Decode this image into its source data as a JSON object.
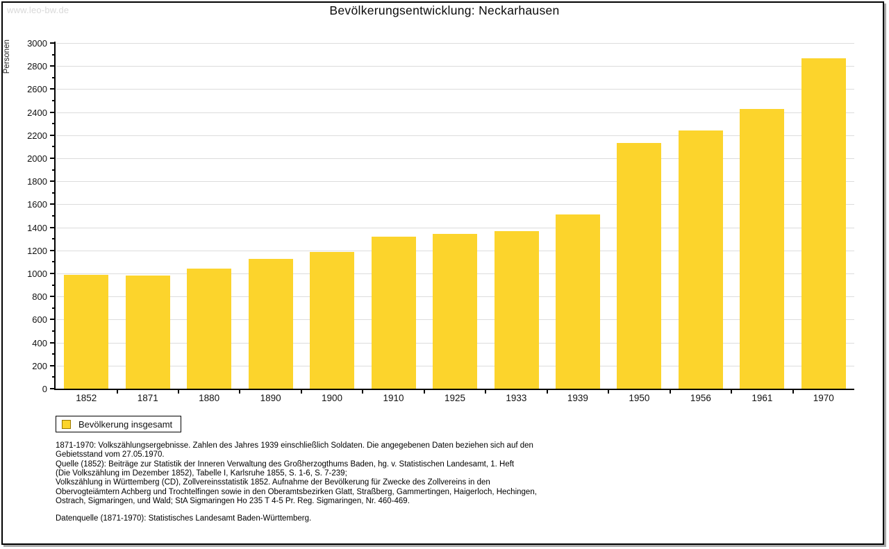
{
  "watermark": "www.leo-bw.de",
  "title": "Bevölkerungsentwicklung: Neckarhausen",
  "chart_data": {
    "type": "bar",
    "title": "Bevölkerungsentwicklung: Neckarhausen",
    "xlabel": "",
    "ylabel": "Personen",
    "categories": [
      "1852",
      "1871",
      "1880",
      "1890",
      "1900",
      "1910",
      "1925",
      "1933",
      "1939",
      "1950",
      "1956",
      "1961",
      "1970"
    ],
    "values": [
      990,
      980,
      1040,
      1125,
      1190,
      1320,
      1345,
      1370,
      1510,
      2130,
      2240,
      2430,
      2870
    ],
    "ylim": [
      0,
      3000
    ],
    "ytick_step": 200,
    "minor_tick_step": 100,
    "grid": true,
    "legend_position": "bottom-left",
    "bar_color": "#fcd42c",
    "grid_color": "#dcdcdc",
    "axis_color": "#000000"
  },
  "legend": {
    "label": "Bevölkerung insgesamt",
    "swatch_color": "#fcd42c",
    "swatch_border_color": "#997700"
  },
  "footnotes": {
    "lines": [
      "1871-1970: Volkszählungsergebnisse. Zahlen des Jahres 1939 einschließlich Soldaten. Die angegebenen Daten beziehen sich auf den",
      "Gebietsstand vom 27.05.1970.",
      "Quelle (1852): Beiträge zur Statistik der Inneren Verwaltung des Großherzogthums Baden, hg. v. Statistischen Landesamt, 1. Heft",
      "(Die Volkszählung im Dezember 1852), Tabelle I, Karlsruhe 1855, S. 1-6, S. 7-239;",
      "Volkszählung in Württemberg (CD), Zollvereinsstatistik 1852. Aufnahme der Bevölkerung für Zwecke des Zollvereins in den",
      "Obervogteiämtern Achberg und Trochtelfingen sowie in den Oberamtsbezirken Glatt, Straßberg, Gammertingen, Haigerloch, Hechingen,",
      "Ostrach, Sigmaringen, und Wald; StA Sigmaringen Ho 235 T 4-5 Pr. Reg. Sigmaringen, Nr. 460-469."
    ],
    "datasource": "Datenquelle (1871-1970): Statistisches Landesamt Baden-Württemberg."
  }
}
